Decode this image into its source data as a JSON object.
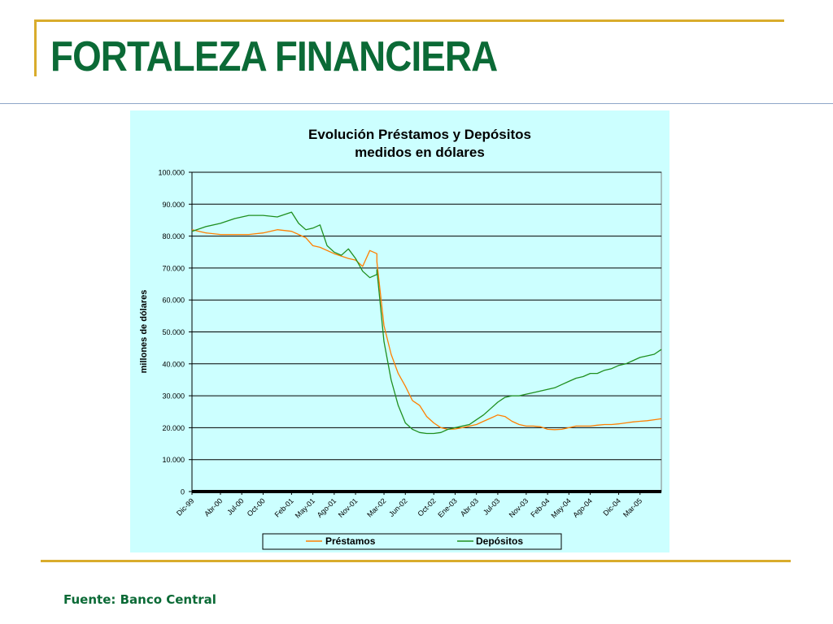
{
  "page": {
    "title": "FORTALEZA FINANCIERA",
    "source": "Fuente: Banco Central"
  },
  "colors": {
    "title": "#0b6a36",
    "frame_gold": "#d9ac2c",
    "chart_bg": "#ccffff",
    "prestamos": "#ff7f00",
    "depositos": "#1f8f1f"
  },
  "chart_data": {
    "type": "line",
    "title": "Evolución Préstamos y Depósitos",
    "subtitle": "medidos en dólares",
    "ylabel": "millones de dólares",
    "xlabel": "",
    "ylim": [
      0,
      100000
    ],
    "xlim": [
      "1999-12",
      "2005-06"
    ],
    "yticks": [
      0,
      10000,
      20000,
      30000,
      40000,
      50000,
      60000,
      70000,
      80000,
      90000,
      100000
    ],
    "ytick_labels": [
      "0",
      "10.000",
      "20.000",
      "30.000",
      "40.000",
      "50.000",
      "60.000",
      "70.000",
      "80.000",
      "90.000",
      "100.000"
    ],
    "xtick_dates": [
      "1999-12",
      "2000-04",
      "2000-07",
      "2000-10",
      "2001-02",
      "2001-05",
      "2001-08",
      "2001-11",
      "2002-03",
      "2002-06",
      "2002-10",
      "2003-01",
      "2003-04",
      "2003-07",
      "2003-11",
      "2004-02",
      "2004-05",
      "2004-08",
      "2004-12",
      "2005-03"
    ],
    "xtick_labels": [
      "Dic-99",
      "Abr-00",
      "Jul-00",
      "Oct-00",
      "Feb-01",
      "May-01",
      "Ago-01",
      "Nov-01",
      "Mar-02",
      "Jun-02",
      "Oct-02",
      "Ene-03",
      "Abr-03",
      "Jul-03",
      "Nov-03",
      "Feb-04",
      "May-04",
      "Ago-04",
      "Dic-04",
      "Mar-05"
    ],
    "grid": "horizontal",
    "legend_position": "bottom",
    "series": [
      {
        "name": "Préstamos",
        "color": "#ff7f00",
        "x": [
          "1999-12",
          "2000-02",
          "2000-04",
          "2000-06",
          "2000-08",
          "2000-10",
          "2000-12",
          "2001-02",
          "2001-03",
          "2001-04",
          "2001-05",
          "2001-06",
          "2001-08",
          "2001-10",
          "2001-11",
          "2001-12",
          "2002-01",
          "2002-02",
          "2002-02",
          "2002-03",
          "2002-04",
          "2002-05",
          "2002-06",
          "2002-07",
          "2002-08",
          "2002-09",
          "2002-10",
          "2002-11",
          "2002-12",
          "2003-01",
          "2003-02",
          "2003-03",
          "2003-04",
          "2003-05",
          "2003-06",
          "2003-07",
          "2003-08",
          "2003-09",
          "2003-10",
          "2003-11",
          "2003-12",
          "2004-01",
          "2004-02",
          "2004-03",
          "2004-04",
          "2004-05",
          "2004-06",
          "2004-07",
          "2004-08",
          "2004-09",
          "2004-10",
          "2004-11",
          "2004-12",
          "2005-01",
          "2005-02",
          "2005-03",
          "2005-04",
          "2005-05",
          "2005-06"
        ],
        "y": [
          82000,
          81000,
          80500,
          80500,
          80500,
          81000,
          82000,
          81500,
          80500,
          79500,
          77000,
          76500,
          74500,
          73000,
          72500,
          70500,
          75500,
          74500,
          72000,
          52000,
          43000,
          37000,
          33000,
          28500,
          27000,
          23500,
          21500,
          20000,
          19500,
          19600,
          20000,
          20500,
          21000,
          22000,
          23000,
          24000,
          23500,
          22000,
          21000,
          20500,
          20500,
          20300,
          19500,
          19400,
          19500,
          20000,
          20500,
          20500,
          20500,
          20800,
          21000,
          21000,
          21200,
          21500,
          21800,
          22000,
          22200,
          22500,
          22800
        ]
      },
      {
        "name": "Depósitos",
        "color": "#1f8f1f",
        "x": [
          "1999-12",
          "2000-02",
          "2000-04",
          "2000-06",
          "2000-08",
          "2000-10",
          "2000-12",
          "2001-02",
          "2001-03",
          "2001-04",
          "2001-05",
          "2001-06",
          "2001-07",
          "2001-08",
          "2001-09",
          "2001-10",
          "2001-11",
          "2001-12",
          "2002-01",
          "2002-02",
          "2002-02",
          "2002-03",
          "2002-04",
          "2002-05",
          "2002-06",
          "2002-07",
          "2002-08",
          "2002-09",
          "2002-10",
          "2002-11",
          "2002-12",
          "2003-01",
          "2003-02",
          "2003-03",
          "2003-04",
          "2003-05",
          "2003-06",
          "2003-07",
          "2003-08",
          "2003-09",
          "2003-10",
          "2003-11",
          "2003-12",
          "2004-01",
          "2004-02",
          "2004-03",
          "2004-04",
          "2004-05",
          "2004-06",
          "2004-07",
          "2004-08",
          "2004-09",
          "2004-10",
          "2004-11",
          "2004-12",
          "2005-01",
          "2005-02",
          "2005-03",
          "2005-04",
          "2005-05",
          "2005-06"
        ],
        "y": [
          81500,
          83000,
          84000,
          85500,
          86500,
          86500,
          86000,
          87500,
          84000,
          82000,
          82500,
          83500,
          77000,
          75000,
          74000,
          76000,
          73000,
          69000,
          67000,
          68000,
          69500,
          47000,
          35000,
          27000,
          21500,
          19500,
          18500,
          18200,
          18200,
          18500,
          19500,
          20000,
          20500,
          21000,
          22500,
          24000,
          26000,
          28000,
          29500,
          30000,
          30000,
          30500,
          31000,
          31500,
          32000,
          32500,
          33500,
          34500,
          35500,
          36000,
          37000,
          37000,
          38000,
          38500,
          39500,
          40000,
          41000,
          42000,
          42500,
          43000,
          44500
        ]
      }
    ]
  }
}
